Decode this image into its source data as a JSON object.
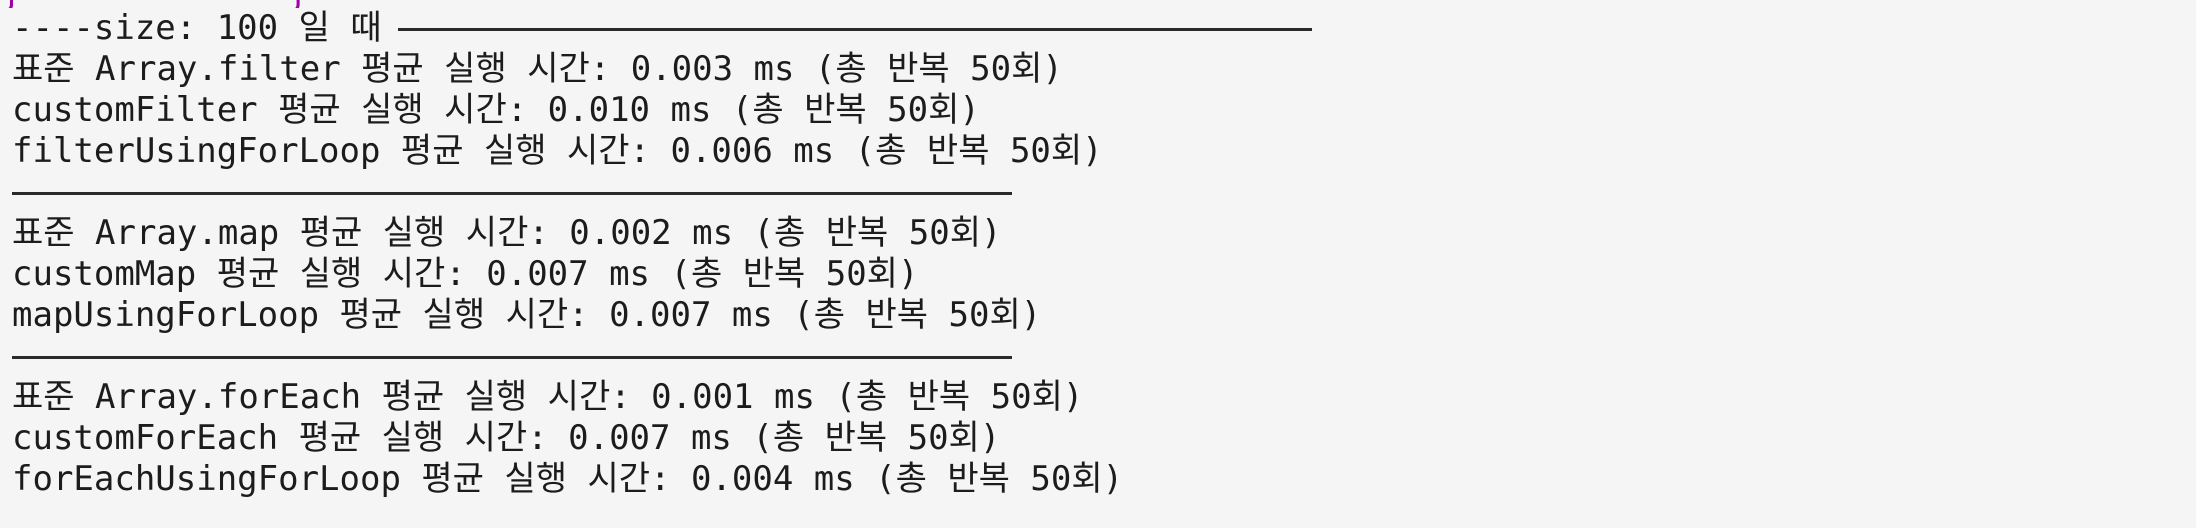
{
  "terminal": {
    "prompt_fragment": "j      ·   ·  j",
    "header": "----size: 100 일 때",
    "groups": [
      {
        "lines": [
          "표준 Array.filter 평균 실행 시간: 0.003 ms (총 반복 50회)",
          "customFilter 평균 실행 시간: 0.010 ms (총 반복 50회)",
          "filterUsingForLoop 평균 실행 시간: 0.006 ms (총 반복 50회)"
        ]
      },
      {
        "lines": [
          "표준 Array.map 평균 실행 시간: 0.002 ms (총 반복 50회)",
          "customMap 평균 실행 시간: 0.007 ms (총 반복 50회)",
          "mapUsingForLoop 평균 실행 시간: 0.007 ms (총 반복 50회)"
        ]
      },
      {
        "lines": [
          "표준 Array.forEach 평균 실행 시간: 0.001 ms (총 반복 50회)",
          "customForEach 평균 실행 시간: 0.007 ms (총 반복 50회)",
          "forEachUsingForLoop 평균 실행 시간: 0.004 ms (총 반복 50회)"
        ]
      }
    ]
  },
  "colors": {
    "background": "#f5f5f5",
    "text": "#1c1c1c",
    "prompt_accent": "#a000a8"
  }
}
